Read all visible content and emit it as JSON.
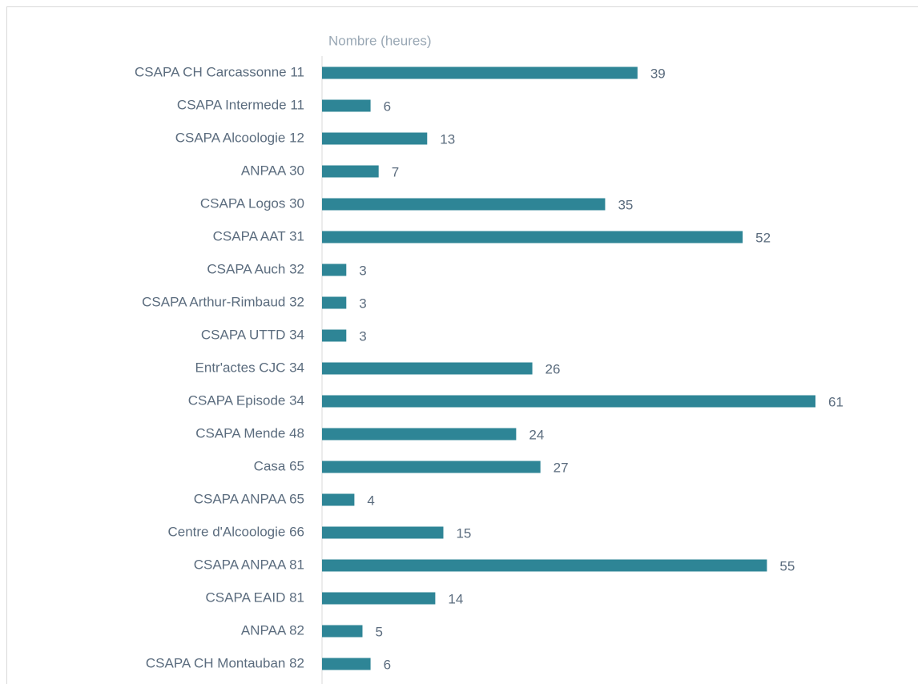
{
  "chart_data": {
    "type": "bar",
    "orientation": "horizontal",
    "title": "Nombre (heures)",
    "categories": [
      "CSAPA CH Carcassonne 11",
      "CSAPA Intermede 11",
      "CSAPA Alcoologie 12",
      "ANPAA 30",
      "CSAPA Logos 30",
      "CSAPA AAT 31",
      "CSAPA Auch 32",
      "CSAPA Arthur-Rimbaud 32",
      "CSAPA UTTD 34",
      "Entr'actes CJC 34",
      "CSAPA Episode 34",
      "CSAPA Mende 48",
      "Casa 65",
      "CSAPA ANPAA 65",
      "Centre d'Alcoologie 66",
      "CSAPA ANPAA 81",
      "CSAPA EAID 81",
      "ANPAA 82",
      "CSAPA CH Montauban 82"
    ],
    "values": [
      39,
      6,
      13,
      7,
      35,
      52,
      3,
      3,
      3,
      26,
      61,
      24,
      27,
      4,
      15,
      55,
      14,
      5,
      6
    ],
    "color": "#2e8596"
  }
}
